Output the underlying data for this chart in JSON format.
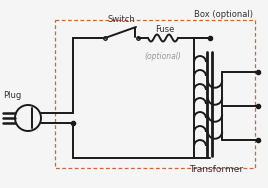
{
  "bg_color": "#f5f5f5",
  "line_color": "#1a1a1a",
  "box_color": "#cc6633",
  "optional_color": "#999999",
  "title_color": "#333333",
  "box_label": "Box (optional)",
  "switch_label": "Switch",
  "fuse_label": "Fuse",
  "optional_label": "(optional)",
  "plug_label": "Plug",
  "transformer_label": "Transformer",
  "figsize": [
    2.68,
    1.88
  ],
  "dpi": 100
}
